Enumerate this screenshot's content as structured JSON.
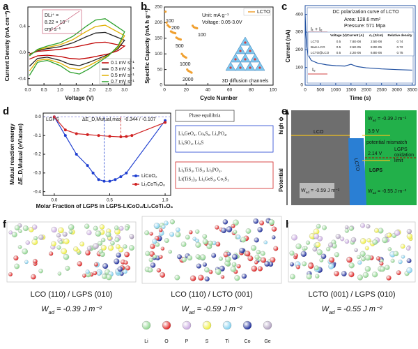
{
  "panel_labels": [
    "a",
    "b",
    "c",
    "d",
    "e",
    "f",
    "g",
    "h"
  ],
  "chart_data": [
    {
      "type": "line",
      "xlabel": "Voltage (V)",
      "ylabel": "Current Density (mA cm⁻²)",
      "xlim": [
        0,
        3.2
      ],
      "xticks": [
        {
          "value": 0,
          "label": "0.0"
        },
        0.5,
        {
          "value": 1,
          "label": "1.0"
        },
        1.5,
        {
          "value": 2,
          "label": "2.0"
        },
        2.5,
        {
          "value": 3,
          "label": "3.0"
        }
      ],
      "ylim": [
        -0.5,
        0.7
      ],
      "yticks": [
        -0.4,
        {
          "value": 0,
          "label": "0.0"
        },
        0.4
      ],
      "annotations": [
        "DLi⁺ =",
        "8.22 × 10⁻⁷",
        "cm² s⁻¹"
      ],
      "series": [
        {
          "name": "0.1 mV s⁻¹",
          "color": "#c00000",
          "x": [
            0.05,
            0.3,
            0.6,
            1.0,
            1.4,
            1.8,
            2.1,
            2.4,
            2.7,
            3.0,
            2.8,
            2.5,
            2.2,
            1.9,
            1.6,
            1.3,
            1.0,
            0.6,
            0.3,
            0.05
          ],
          "values": [
            -0.02,
            0.02,
            0.03,
            0.05,
            0.08,
            0.12,
            0.15,
            0.16,
            0.13,
            0.1,
            0.03,
            -0.02,
            -0.05,
            -0.08,
            -0.1,
            -0.09,
            -0.06,
            -0.04,
            -0.05,
            -0.1
          ]
        },
        {
          "name": "0.3 mV s⁻¹",
          "color": "#222222",
          "x": [
            0.05,
            0.3,
            0.6,
            1.0,
            1.4,
            1.8,
            2.1,
            2.4,
            2.7,
            3.0,
            2.8,
            2.5,
            2.2,
            1.9,
            1.6,
            1.3,
            1.0,
            0.6,
            0.3,
            0.05
          ],
          "values": [
            -0.03,
            0.03,
            0.06,
            0.09,
            0.15,
            0.24,
            0.3,
            0.31,
            0.25,
            0.19,
            0.06,
            -0.03,
            -0.09,
            -0.15,
            -0.2,
            -0.18,
            -0.12,
            -0.07,
            -0.09,
            -0.21
          ]
        },
        {
          "name": "0.5 mV s⁻¹",
          "color": "#e0b000",
          "x": [
            0.05,
            0.3,
            0.6,
            1.0,
            1.4,
            1.8,
            2.1,
            2.4,
            2.7,
            3.0,
            2.8,
            2.5,
            2.2,
            1.9,
            1.6,
            1.3,
            1.0,
            0.6,
            0.3,
            0.05
          ],
          "values": [
            -0.04,
            0.04,
            0.08,
            0.12,
            0.2,
            0.32,
            0.4,
            0.42,
            0.34,
            0.26,
            0.08,
            -0.04,
            -0.12,
            -0.2,
            -0.26,
            -0.24,
            -0.16,
            -0.1,
            -0.12,
            -0.28
          ]
        },
        {
          "name": "0.7 mV s⁻¹",
          "color": "#2ca02c",
          "x": [
            0.05,
            0.3,
            0.6,
            1.0,
            1.4,
            1.8,
            2.1,
            2.4,
            2.7,
            3.0,
            2.8,
            2.5,
            2.2,
            1.9,
            1.6,
            1.3,
            1.0,
            0.6,
            0.3,
            0.05
          ],
          "values": [
            -0.05,
            0.05,
            0.1,
            0.15,
            0.25,
            0.4,
            0.5,
            0.52,
            0.42,
            0.32,
            0.1,
            -0.05,
            -0.15,
            -0.25,
            -0.33,
            -0.3,
            -0.2,
            -0.12,
            -0.15,
            -0.35
          ]
        }
      ]
    },
    {
      "type": "scatter",
      "xlabel": "Cycle Number",
      "ylabel": "Specific Capacity (mA h g⁻¹)",
      "xlim": [
        0,
        100
      ],
      "xticks": [
        0,
        20,
        40,
        60,
        80,
        100
      ],
      "ylim": [
        0,
        250
      ],
      "yticks": [
        0,
        50,
        100,
        150,
        200,
        250
      ],
      "annotations": [
        "Unit: mA g⁻¹",
        "Voltage: 0.05-3.0V",
        "100",
        "200",
        "500",
        "1000",
        "2000",
        "100",
        "3D diffusion channels"
      ],
      "series": [
        {
          "name": "LCTO",
          "color": "#f0a030",
          "x": [
            1,
            2,
            3,
            4,
            5,
            6,
            7,
            8,
            9,
            10,
            11,
            12,
            13,
            14,
            15,
            16,
            17,
            18,
            19,
            20,
            21,
            22,
            23,
            24,
            25,
            26,
            27,
            28,
            29,
            30
          ],
          "values": [
            235,
            200,
            192,
            188,
            186,
            172,
            170,
            168,
            167,
            166,
            152,
            150,
            148,
            147,
            146,
            100,
            95,
            92,
            90,
            88,
            50,
            46,
            44,
            42,
            40,
            190,
            186,
            184,
            183,
            182
          ]
        }
      ]
    },
    {
      "type": "line",
      "title": "DC polarization curve of LCTO",
      "xlabel": "Time (s)",
      "ylabel": "Current (nA)",
      "xlim": [
        0,
        3600
      ],
      "xticks": [
        0,
        500,
        1000,
        1500,
        2000,
        2500,
        3000,
        3500
      ],
      "ylim": [
        0,
        450
      ],
      "yticks": [
        0,
        100,
        200,
        300,
        400
      ],
      "annotations": [
        "Area: 128.6 mm²",
        "Pressure: 571 Mpa",
        "Iₜ + Iₑ",
        "Iₑ"
      ],
      "table": {
        "header": [
          "Voltage (V)",
          "Current (A)",
          "σₑ (S/cm)",
          "Relative density"
        ],
        "rows": [
          [
            "LCTO",
            "0.5",
            "7.8E-08",
            "2.5E-08",
            "0.74"
          ],
          [
            "Bare LCO",
            "0.5",
            "2.5E-05",
            "8.0E-05",
            "0.72"
          ],
          [
            "LCTO@LCO",
            "0.5",
            "2.2E-06",
            "6.8E-06",
            "0.75"
          ]
        ]
      },
      "series": [
        {
          "name": "LCTO",
          "color": "#1f4fa0",
          "x": [
            0,
            20,
            50,
            100,
            200,
            400,
            700,
            1000,
            1300,
            1500,
            1700,
            2000,
            2500,
            3000,
            3500
          ],
          "values": [
            400,
            300,
            220,
            170,
            140,
            125,
            115,
            110,
            108,
            118,
            105,
            98,
            92,
            88,
            85
          ]
        }
      ]
    },
    {
      "type": "line",
      "markers": true,
      "xlabel": "Molar Fraction of LGPS in LGPS-LiCoO₂/Li₂CoTi₃O₈",
      "ylabel": [
        "Mutual reaction energy",
        "ΔE_D,Mutual (eV/atom)"
      ],
      "xlim": [
        -0.1,
        1.05
      ],
      "xticks": [
        {
          "value": 0,
          "label": "0.0"
        },
        0.5,
        {
          "value": 1,
          "label": "1.0"
        }
      ],
      "ylim": [
        -0.42,
        0.02
      ],
      "yticks": [
        {
          "value": 0,
          "label": "0.0"
        },
        -0.1,
        -0.2,
        -0.3,
        -0.4
      ],
      "annotations": [
        "LGPS",
        "ΔE_D,Mutual,max",
        "-0.344 / -0.107"
      ],
      "phase_equilibria": {
        "title": "Phase equilibria",
        "blue": [
          "Li₃GeO₄, Co₉S₈, Li₃PO₄,",
          "Li₂SO₄, Li₂S"
        ],
        "red": [
          "Li₄TiS₄, TiS₂, Li₃PO₄,",
          "Li(TiS₂)₂, Li₄GeS₄, Co₂S₃"
        ]
      },
      "series": [
        {
          "name": "LiCoO₂",
          "color": "#1f3fd0",
          "x": [
            0,
            0.1,
            0.2,
            0.3,
            0.35,
            0.4,
            0.45,
            0.5,
            0.55,
            0.6,
            0.65,
            1.0
          ],
          "values": [
            0,
            -0.1,
            -0.2,
            -0.26,
            -0.3,
            -0.335,
            -0.344,
            -0.344,
            -0.335,
            -0.32,
            -0.3,
            -0.02
          ]
        },
        {
          "name": "Li₂CoTi₃O₈",
          "color": "#d02020",
          "x": [
            0,
            0.1,
            0.2,
            0.3,
            0.4,
            0.5,
            0.6,
            0.65,
            0.7,
            1.0
          ],
          "values": [
            0,
            -0.07,
            -0.09,
            -0.095,
            -0.1,
            -0.104,
            -0.107,
            -0.105,
            -0.1,
            -0.03
          ]
        }
      ]
    }
  ],
  "panel_e": {
    "axis_top": "high ϕ",
    "axis": "Potential",
    "regions": [
      "LCO",
      "LCTO",
      "LGPS"
    ],
    "voltages": [
      "3.9 V",
      "2.14 V"
    ],
    "mismatch": "potential mismatch",
    "limit": [
      "LGPS",
      "oxidation",
      "limit"
    ],
    "works": [
      {
        "symbol": "W",
        "sub": "ad",
        "text": " = -0.39 J m⁻²"
      },
      {
        "symbol": "W",
        "sub": "ad",
        "text": " = -0.59 J m⁻²"
      },
      {
        "symbol": "W",
        "sub": "ad",
        "text": " = -0.55 J m⁻²"
      }
    ]
  },
  "structures": [
    {
      "interface": "LCO (110) / LGPS (010)",
      "work": {
        "symbol": "W",
        "sub": "ad",
        "text": " = -0.39 J m⁻²"
      }
    },
    {
      "interface": "LCO (110) / LCTO (001)",
      "work": {
        "symbol": "W",
        "sub": "ad",
        "text": " = -0.59 J m⁻²"
      }
    },
    {
      "interface": "LCTO (001) / LGPS (010)",
      "work": {
        "symbol": "W",
        "sub": "ad",
        "text": " = -0.55 J m⁻²"
      }
    }
  ],
  "element_legend": [
    {
      "name": "Li",
      "color": "#8fd68f"
    },
    {
      "name": "O",
      "color": "#e02020"
    },
    {
      "name": "P",
      "color": "#c8a8e0"
    },
    {
      "name": "S",
      "color": "#f0f040"
    },
    {
      "name": "Ti",
      "color": "#80d0f0"
    },
    {
      "name": "Co",
      "color": "#1a2a9a"
    },
    {
      "name": "Ge",
      "color": "#b0a0c0"
    }
  ]
}
